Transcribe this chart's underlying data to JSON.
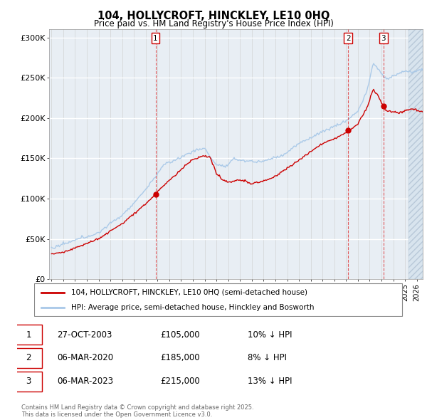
{
  "title1": "104, HOLLYCROFT, HINCKLEY, LE10 0HQ",
  "title2": "Price paid vs. HM Land Registry's House Price Index (HPI)",
  "xlim": [
    1994.8,
    2026.5
  ],
  "ylim": [
    0,
    310000
  ],
  "yticks": [
    0,
    50000,
    100000,
    150000,
    200000,
    250000,
    300000
  ],
  "ytick_labels": [
    "£0",
    "£50K",
    "£100K",
    "£150K",
    "£200K",
    "£250K",
    "£300K"
  ],
  "hpi_color": "#a8c8e8",
  "price_color": "#cc0000",
  "bg_color": "#e8eef4",
  "grid_color": "#ffffff",
  "legend_label_red": "104, HOLLYCROFT, HINCKLEY, LE10 0HQ (semi-detached house)",
  "legend_label_blue": "HPI: Average price, semi-detached house, Hinckley and Bosworth",
  "transactions": [
    {
      "id": 1,
      "year": 2003.83,
      "price": 105000,
      "date": "27-OCT-2003",
      "pct": "10%",
      "dir": "↓"
    },
    {
      "id": 2,
      "year": 2020.17,
      "price": 185000,
      "date": "06-MAR-2020",
      "pct": "8%",
      "dir": "↓"
    },
    {
      "id": 3,
      "year": 2023.17,
      "price": 215000,
      "date": "06-MAR-2023",
      "pct": "13%",
      "dir": "↓"
    }
  ],
  "footer1": "Contains HM Land Registry data © Crown copyright and database right 2025.",
  "footer2": "This data is licensed under the Open Government Licence v3.0.",
  "annotation_box_color": "#cc0000",
  "hatch_start": 2025.3
}
